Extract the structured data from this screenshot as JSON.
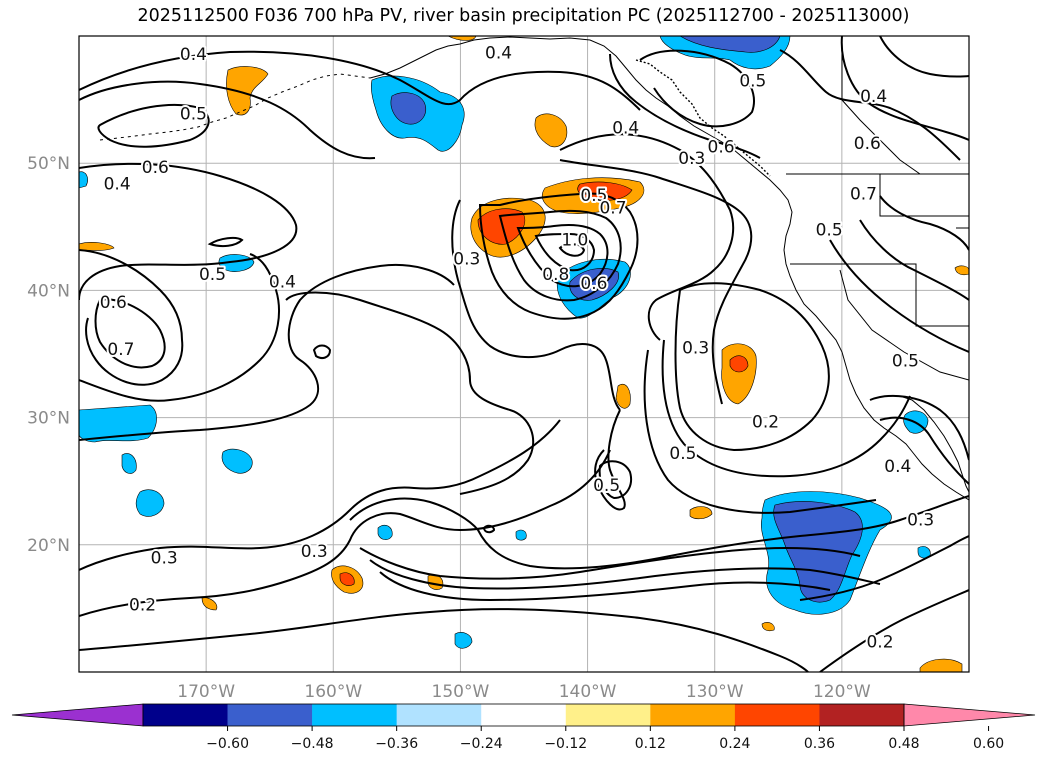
{
  "title": "2025112500 F036 700 hPa PV, river basin precipitation PC (2025112700 - 2025113000)",
  "map": {
    "lon_range": [
      -180,
      -110
    ],
    "lat_range": [
      10,
      60
    ],
    "lon_ticks": [
      {
        "lon": -170,
        "label": "170°W"
      },
      {
        "lon": -160,
        "label": "160°W"
      },
      {
        "lon": -150,
        "label": "150°W"
      },
      {
        "lon": -140,
        "label": "140°W"
      },
      {
        "lon": -130,
        "label": "130°W"
      },
      {
        "lon": -120,
        "label": "120°W"
      }
    ],
    "lat_ticks": [
      {
        "lat": 50,
        "label": "50°N"
      },
      {
        "lat": 40,
        "label": "40°N"
      },
      {
        "lat": 30,
        "label": "30°N"
      },
      {
        "lat": 20,
        "label": "20°N"
      }
    ],
    "grid": true,
    "contour_labels": [
      {
        "text": "0.4",
        "lon": -171,
        "lat": 58.6
      },
      {
        "text": "0.5",
        "lon": -171,
        "lat": 53.9
      },
      {
        "text": "0.6",
        "lon": -174,
        "lat": 49.7
      },
      {
        "text": "0.4",
        "lon": -177,
        "lat": 48.4
      },
      {
        "text": "0.4",
        "lon": -147,
        "lat": 58.7
      },
      {
        "text": "0.4",
        "lon": -137,
        "lat": 52.8
      },
      {
        "text": "0.3",
        "lon": -131.8,
        "lat": 50.4
      },
      {
        "text": "0.6",
        "lon": -129.5,
        "lat": 51.3
      },
      {
        "text": "0.5",
        "lon": -127,
        "lat": 56.5
      },
      {
        "text": "0.4",
        "lon": -117.5,
        "lat": 55.3
      },
      {
        "text": "0.6",
        "lon": -118,
        "lat": 51.6
      },
      {
        "text": "0.7",
        "lon": -118.3,
        "lat": 47.6
      },
      {
        "text": "0.5",
        "lon": -121,
        "lat": 44.8
      },
      {
        "text": "0.5",
        "lon": -139.5,
        "lat": 47.5
      },
      {
        "text": "0.7",
        "lon": -138,
        "lat": 46.5
      },
      {
        "text": "1.0",
        "lon": -141,
        "lat": 44.0
      },
      {
        "text": "0.8",
        "lon": -142.5,
        "lat": 41.3
      },
      {
        "text": "0.6",
        "lon": -139.5,
        "lat": 40.6
      },
      {
        "text": "0.3",
        "lon": -149.5,
        "lat": 42.5
      },
      {
        "text": "0.5",
        "lon": -169.5,
        "lat": 41.3
      },
      {
        "text": "0.4",
        "lon": -164,
        "lat": 40.7
      },
      {
        "text": "0.6",
        "lon": -177.3,
        "lat": 39.1
      },
      {
        "text": "0.7",
        "lon": -176.7,
        "lat": 35.4
      },
      {
        "text": "0.3",
        "lon": -131.5,
        "lat": 35.5
      },
      {
        "text": "0.2",
        "lon": -126,
        "lat": 29.7
      },
      {
        "text": "0.5",
        "lon": -115,
        "lat": 34.5
      },
      {
        "text": "0.4",
        "lon": -115.6,
        "lat": 26.2
      },
      {
        "text": "0.5",
        "lon": -132.5,
        "lat": 27.2
      },
      {
        "text": "0.5",
        "lon": -138.5,
        "lat": 24.7
      },
      {
        "text": "0.3",
        "lon": -173.3,
        "lat": 19.0
      },
      {
        "text": "0.3",
        "lon": -161.5,
        "lat": 19.5
      },
      {
        "text": "0.2",
        "lon": -175,
        "lat": 15.3
      },
      {
        "text": "0.3",
        "lon": -113.8,
        "lat": 22.0
      },
      {
        "text": "0.2",
        "lon": -117,
        "lat": 12.4
      }
    ]
  },
  "colorbar": {
    "colors": [
      "#9b30d0",
      "#00008b",
      "#3a5fcd",
      "#00bfff",
      "#b0e2ff",
      "#ffffff",
      "#fff08a",
      "#ffa500",
      "#ff4500",
      "#b22222",
      "#ff88aa"
    ],
    "tick_labels": [
      "−0.60",
      "−0.48",
      "−0.36",
      "−0.24",
      "−0.12",
      "0.12",
      "0.24",
      "0.36",
      "0.48",
      "0.60"
    ]
  }
}
